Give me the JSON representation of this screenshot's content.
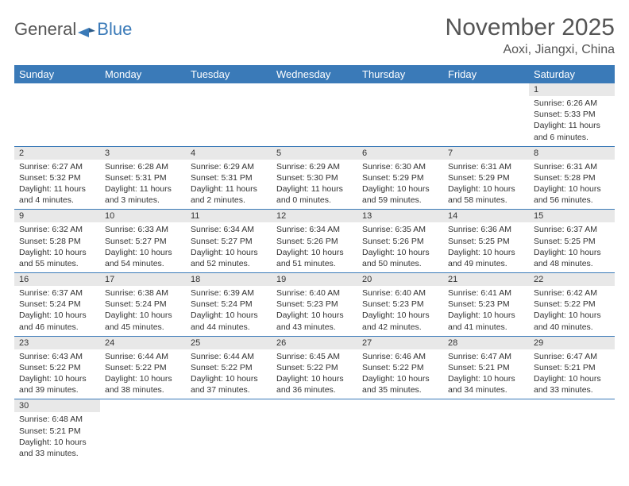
{
  "logo": {
    "text_general": "General",
    "text_blue": "Blue"
  },
  "header": {
    "month_title": "November 2025",
    "location": "Aoxi, Jiangxi, China"
  },
  "colors": {
    "header_blue": "#3a7ab8",
    "daynum_bg": "#e8e8e8",
    "text": "#333333",
    "title_text": "#555555"
  },
  "day_names": [
    "Sunday",
    "Monday",
    "Tuesday",
    "Wednesday",
    "Thursday",
    "Friday",
    "Saturday"
  ],
  "weeks": [
    [
      null,
      null,
      null,
      null,
      null,
      null,
      {
        "n": "1",
        "sr": "Sunrise: 6:26 AM",
        "ss": "Sunset: 5:33 PM",
        "dl": "Daylight: 11 hours and 6 minutes."
      }
    ],
    [
      {
        "n": "2",
        "sr": "Sunrise: 6:27 AM",
        "ss": "Sunset: 5:32 PM",
        "dl": "Daylight: 11 hours and 4 minutes."
      },
      {
        "n": "3",
        "sr": "Sunrise: 6:28 AM",
        "ss": "Sunset: 5:31 PM",
        "dl": "Daylight: 11 hours and 3 minutes."
      },
      {
        "n": "4",
        "sr": "Sunrise: 6:29 AM",
        "ss": "Sunset: 5:31 PM",
        "dl": "Daylight: 11 hours and 2 minutes."
      },
      {
        "n": "5",
        "sr": "Sunrise: 6:29 AM",
        "ss": "Sunset: 5:30 PM",
        "dl": "Daylight: 11 hours and 0 minutes."
      },
      {
        "n": "6",
        "sr": "Sunrise: 6:30 AM",
        "ss": "Sunset: 5:29 PM",
        "dl": "Daylight: 10 hours and 59 minutes."
      },
      {
        "n": "7",
        "sr": "Sunrise: 6:31 AM",
        "ss": "Sunset: 5:29 PM",
        "dl": "Daylight: 10 hours and 58 minutes."
      },
      {
        "n": "8",
        "sr": "Sunrise: 6:31 AM",
        "ss": "Sunset: 5:28 PM",
        "dl": "Daylight: 10 hours and 56 minutes."
      }
    ],
    [
      {
        "n": "9",
        "sr": "Sunrise: 6:32 AM",
        "ss": "Sunset: 5:28 PM",
        "dl": "Daylight: 10 hours and 55 minutes."
      },
      {
        "n": "10",
        "sr": "Sunrise: 6:33 AM",
        "ss": "Sunset: 5:27 PM",
        "dl": "Daylight: 10 hours and 54 minutes."
      },
      {
        "n": "11",
        "sr": "Sunrise: 6:34 AM",
        "ss": "Sunset: 5:27 PM",
        "dl": "Daylight: 10 hours and 52 minutes."
      },
      {
        "n": "12",
        "sr": "Sunrise: 6:34 AM",
        "ss": "Sunset: 5:26 PM",
        "dl": "Daylight: 10 hours and 51 minutes."
      },
      {
        "n": "13",
        "sr": "Sunrise: 6:35 AM",
        "ss": "Sunset: 5:26 PM",
        "dl": "Daylight: 10 hours and 50 minutes."
      },
      {
        "n": "14",
        "sr": "Sunrise: 6:36 AM",
        "ss": "Sunset: 5:25 PM",
        "dl": "Daylight: 10 hours and 49 minutes."
      },
      {
        "n": "15",
        "sr": "Sunrise: 6:37 AM",
        "ss": "Sunset: 5:25 PM",
        "dl": "Daylight: 10 hours and 48 minutes."
      }
    ],
    [
      {
        "n": "16",
        "sr": "Sunrise: 6:37 AM",
        "ss": "Sunset: 5:24 PM",
        "dl": "Daylight: 10 hours and 46 minutes."
      },
      {
        "n": "17",
        "sr": "Sunrise: 6:38 AM",
        "ss": "Sunset: 5:24 PM",
        "dl": "Daylight: 10 hours and 45 minutes."
      },
      {
        "n": "18",
        "sr": "Sunrise: 6:39 AM",
        "ss": "Sunset: 5:24 PM",
        "dl": "Daylight: 10 hours and 44 minutes."
      },
      {
        "n": "19",
        "sr": "Sunrise: 6:40 AM",
        "ss": "Sunset: 5:23 PM",
        "dl": "Daylight: 10 hours and 43 minutes."
      },
      {
        "n": "20",
        "sr": "Sunrise: 6:40 AM",
        "ss": "Sunset: 5:23 PM",
        "dl": "Daylight: 10 hours and 42 minutes."
      },
      {
        "n": "21",
        "sr": "Sunrise: 6:41 AM",
        "ss": "Sunset: 5:23 PM",
        "dl": "Daylight: 10 hours and 41 minutes."
      },
      {
        "n": "22",
        "sr": "Sunrise: 6:42 AM",
        "ss": "Sunset: 5:22 PM",
        "dl": "Daylight: 10 hours and 40 minutes."
      }
    ],
    [
      {
        "n": "23",
        "sr": "Sunrise: 6:43 AM",
        "ss": "Sunset: 5:22 PM",
        "dl": "Daylight: 10 hours and 39 minutes."
      },
      {
        "n": "24",
        "sr": "Sunrise: 6:44 AM",
        "ss": "Sunset: 5:22 PM",
        "dl": "Daylight: 10 hours and 38 minutes."
      },
      {
        "n": "25",
        "sr": "Sunrise: 6:44 AM",
        "ss": "Sunset: 5:22 PM",
        "dl": "Daylight: 10 hours and 37 minutes."
      },
      {
        "n": "26",
        "sr": "Sunrise: 6:45 AM",
        "ss": "Sunset: 5:22 PM",
        "dl": "Daylight: 10 hours and 36 minutes."
      },
      {
        "n": "27",
        "sr": "Sunrise: 6:46 AM",
        "ss": "Sunset: 5:22 PM",
        "dl": "Daylight: 10 hours and 35 minutes."
      },
      {
        "n": "28",
        "sr": "Sunrise: 6:47 AM",
        "ss": "Sunset: 5:21 PM",
        "dl": "Daylight: 10 hours and 34 minutes."
      },
      {
        "n": "29",
        "sr": "Sunrise: 6:47 AM",
        "ss": "Sunset: 5:21 PM",
        "dl": "Daylight: 10 hours and 33 minutes."
      }
    ],
    [
      {
        "n": "30",
        "sr": "Sunrise: 6:48 AM",
        "ss": "Sunset: 5:21 PM",
        "dl": "Daylight: 10 hours and 33 minutes."
      },
      null,
      null,
      null,
      null,
      null,
      null
    ]
  ]
}
